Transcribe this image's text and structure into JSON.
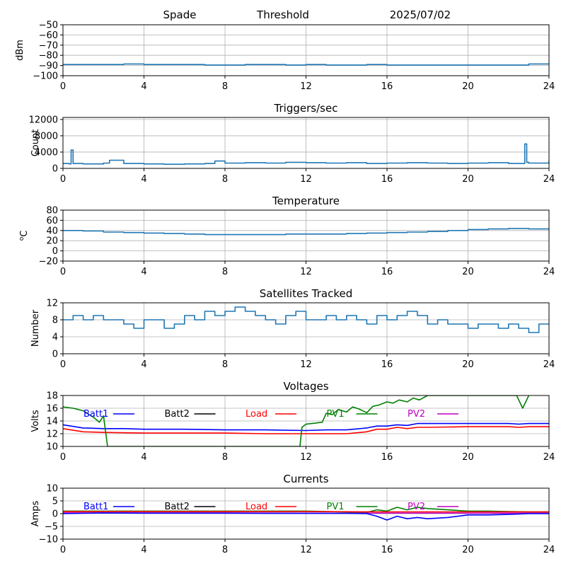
{
  "header": {
    "station": "Spade",
    "mode": "Threshold",
    "date": "2025/07/02"
  },
  "x_ticks": [
    "0",
    "4",
    "8",
    "12",
    "16",
    "20",
    "24"
  ],
  "colors": {
    "primary": "#1f77b4",
    "Batt1": "#0000ff",
    "Batt2": "#000000",
    "Load": "#ff0000",
    "PV1": "#008000",
    "PV2": "#c000c0"
  },
  "chart_data": [
    {
      "type": "line",
      "title": "",
      "ylabel": "dBm",
      "xlim": [
        0,
        24
      ],
      "ylim": [
        -100,
        -50
      ],
      "yticks": [
        "−50",
        "−60",
        "−70",
        "−80",
        "−90",
        "−100"
      ],
      "grid": true,
      "series": [
        {
          "x": [
            0,
            1,
            2,
            3,
            4,
            5,
            6,
            7,
            8,
            9,
            10,
            11,
            12,
            13,
            14,
            15,
            16,
            17,
            18,
            19,
            20,
            21,
            22,
            23,
            24
          ],
          "values": [
            -89,
            -89,
            -89,
            -88.5,
            -89,
            -89,
            -89,
            -89.5,
            -89.5,
            -89,
            -89,
            -89.5,
            -89,
            -89.5,
            -89.5,
            -89,
            -89.5,
            -89.5,
            -89.5,
            -89.5,
            -89.5,
            -89.5,
            -89.5,
            -88.5,
            -89
          ]
        }
      ]
    },
    {
      "type": "line",
      "title": "Triggers/sec",
      "ylabel": "Count",
      "xlim": [
        0,
        24
      ],
      "ylim": [
        0,
        12500
      ],
      "yticks": [
        "12000",
        "8000",
        "4000",
        "0"
      ],
      "grid": true,
      "series": [
        {
          "x": [
            0,
            0.3,
            0.4,
            0.5,
            1,
            2,
            2.3,
            3,
            4,
            5,
            6,
            7,
            7.5,
            8,
            9,
            10,
            11,
            12,
            13,
            14,
            15,
            16,
            17,
            18,
            19,
            20,
            21,
            22,
            22.8,
            22.9,
            23,
            24
          ],
          "values": [
            1200,
            1100,
            4500,
            1200,
            1100,
            1300,
            2000,
            1200,
            1100,
            1000,
            1100,
            1200,
            1800,
            1300,
            1400,
            1300,
            1500,
            1400,
            1300,
            1400,
            1200,
            1300,
            1400,
            1300,
            1200,
            1300,
            1400,
            1200,
            6000,
            1500,
            1300,
            2000
          ]
        }
      ]
    },
    {
      "type": "line",
      "title": "Temperature",
      "ylabel": "°C",
      "ylabel_prefix": "o",
      "ylabel_suffix": "C",
      "xlim": [
        0,
        24
      ],
      "ylim": [
        -20,
        80
      ],
      "yticks": [
        "80",
        "60",
        "40",
        "20",
        "0",
        "−20"
      ],
      "grid": true,
      "series": [
        {
          "x": [
            0,
            1,
            2,
            3,
            4,
            5,
            6,
            7,
            8,
            9,
            10,
            11,
            12,
            13,
            14,
            15,
            16,
            17,
            18,
            19,
            20,
            21,
            22,
            23,
            24
          ],
          "values": [
            40,
            39,
            37,
            36,
            35,
            34,
            33,
            32,
            32,
            32,
            32,
            33,
            33,
            33,
            34,
            35,
            36,
            37,
            38,
            40,
            42,
            43,
            44,
            43,
            44
          ]
        }
      ]
    },
    {
      "type": "line",
      "title": "Satellites Tracked",
      "ylabel": "Number",
      "xlim": [
        0,
        24
      ],
      "ylim": [
        0,
        12
      ],
      "yticks": [
        "12",
        "8",
        "4",
        "0"
      ],
      "grid": true,
      "series": [
        {
          "x": [
            0,
            0.5,
            1,
            1.5,
            2,
            2.5,
            3,
            3.5,
            4,
            4.5,
            5,
            5.5,
            6,
            6.5,
            7,
            7.5,
            8,
            8.5,
            9,
            9.5,
            10,
            10.5,
            11,
            11.5,
            12,
            12.5,
            13,
            13.5,
            14,
            14.5,
            15,
            15.5,
            16,
            16.5,
            17,
            17.5,
            18,
            18.5,
            19,
            19.5,
            20,
            20.5,
            21,
            21.5,
            22,
            22.5,
            23,
            23.5,
            24
          ],
          "values": [
            8,
            9,
            8,
            9,
            8,
            8,
            7,
            6,
            8,
            8,
            6,
            7,
            9,
            8,
            10,
            9,
            10,
            11,
            10,
            9,
            8,
            7,
            9,
            10,
            8,
            8,
            9,
            8,
            9,
            8,
            7,
            9,
            8,
            9,
            10,
            9,
            7,
            8,
            7,
            7,
            6,
            7,
            7,
            6,
            7,
            6,
            5,
            7,
            7
          ]
        }
      ]
    },
    {
      "type": "line",
      "title": "Voltages",
      "ylabel": "Volts",
      "xlim": [
        0,
        24
      ],
      "ylim": [
        10,
        18
      ],
      "yticks": [
        "18",
        "16",
        "14",
        "12",
        "10"
      ],
      "grid": true,
      "legend": [
        "Batt1",
        "Batt2",
        "Load",
        "PV1",
        "PV2"
      ],
      "series": [
        {
          "name": "Batt1",
          "x": [
            0,
            1,
            2,
            3,
            4,
            6,
            8,
            10,
            12,
            13,
            14,
            15,
            15.5,
            16,
            16.5,
            17,
            17.5,
            18,
            20,
            22,
            22.5,
            23,
            24
          ],
          "values": [
            13.4,
            12.9,
            12.8,
            12.8,
            12.7,
            12.7,
            12.6,
            12.6,
            12.5,
            12.6,
            12.6,
            12.9,
            13.2,
            13.2,
            13.4,
            13.3,
            13.6,
            13.6,
            13.6,
            13.6,
            13.5,
            13.6,
            13.6
          ]
        },
        {
          "name": "Load",
          "x": [
            0,
            1,
            2,
            4,
            6,
            8,
            10,
            12,
            14,
            15,
            15.5,
            16,
            16.5,
            17,
            17.5,
            18,
            20,
            22,
            22.5,
            23,
            24
          ],
          "values": [
            12.8,
            12.3,
            12.2,
            12.1,
            12.1,
            12.1,
            12.0,
            12.0,
            12.0,
            12.3,
            12.7,
            12.7,
            13.0,
            12.8,
            13.0,
            13.0,
            13.1,
            13.1,
            13.0,
            13.1,
            13.1
          ]
        },
        {
          "name": "PV1",
          "x": [
            0,
            0.5,
            1,
            1.5,
            1.8,
            2,
            2.2,
            11.7,
            11.8,
            12,
            12.3,
            12.8,
            13,
            13.3,
            13.6,
            14,
            14.3,
            14.6,
            15,
            15.3,
            15.6,
            16,
            16.3,
            16.6,
            17,
            17.3,
            17.6,
            18,
            22.4,
            22.7,
            23
          ],
          "values": [
            16.2,
            16.0,
            15.6,
            14.6,
            13.8,
            14.8,
            10.0,
            10.0,
            13.0,
            13.5,
            13.6,
            13.8,
            15.2,
            15.0,
            15.8,
            15.4,
            16.2,
            15.9,
            15.3,
            16.3,
            16.5,
            17.0,
            16.8,
            17.3,
            17.0,
            17.6,
            17.3,
            18.0,
            18.0,
            16.0,
            18.0
          ]
        }
      ]
    },
    {
      "type": "line",
      "title": "Currents",
      "ylabel": "Amps",
      "xlim": [
        0,
        24
      ],
      "ylim": [
        -10,
        10
      ],
      "yticks": [
        "10",
        "5",
        "0",
        "−5",
        "−10"
      ],
      "grid": true,
      "legend": [
        "Batt1",
        "Batt2",
        "Load",
        "PV1",
        "PV2"
      ],
      "series": [
        {
          "name": "PV1",
          "x": [
            0,
            4,
            8,
            12,
            15,
            15.5,
            16,
            16.5,
            17,
            17.5,
            18,
            19,
            20,
            21,
            22,
            23,
            24
          ],
          "values": [
            1,
            1,
            1,
            1,
            0.5,
            1.5,
            1,
            2.5,
            1.5,
            2.5,
            2,
            1.5,
            1,
            1,
            0.8,
            0.7,
            0.7
          ]
        },
        {
          "name": "Load",
          "x": [
            0,
            4,
            8,
            12,
            16,
            20,
            24
          ],
          "values": [
            0.8,
            0.8,
            0.8,
            0.8,
            0.7,
            0.7,
            0.7
          ]
        },
        {
          "name": "PV2",
          "x": [
            0,
            4,
            8,
            12,
            16,
            20,
            24
          ],
          "values": [
            0.3,
            0.3,
            0.3,
            0.2,
            0.2,
            0.2,
            0.2
          ]
        },
        {
          "name": "Batt1",
          "x": [
            0,
            2,
            4,
            6,
            8,
            10,
            12,
            14,
            15,
            15.5,
            16,
            16.5,
            17,
            17.5,
            18,
            19,
            20,
            21,
            22,
            23,
            24
          ],
          "values": [
            0,
            0.3,
            0.2,
            0.2,
            0.2,
            0.1,
            0.1,
            0.1,
            0,
            -1,
            -2.5,
            -1,
            -2,
            -1.5,
            -2,
            -1.5,
            -0.5,
            -0.5,
            -0.3,
            0,
            0
          ]
        }
      ]
    }
  ]
}
